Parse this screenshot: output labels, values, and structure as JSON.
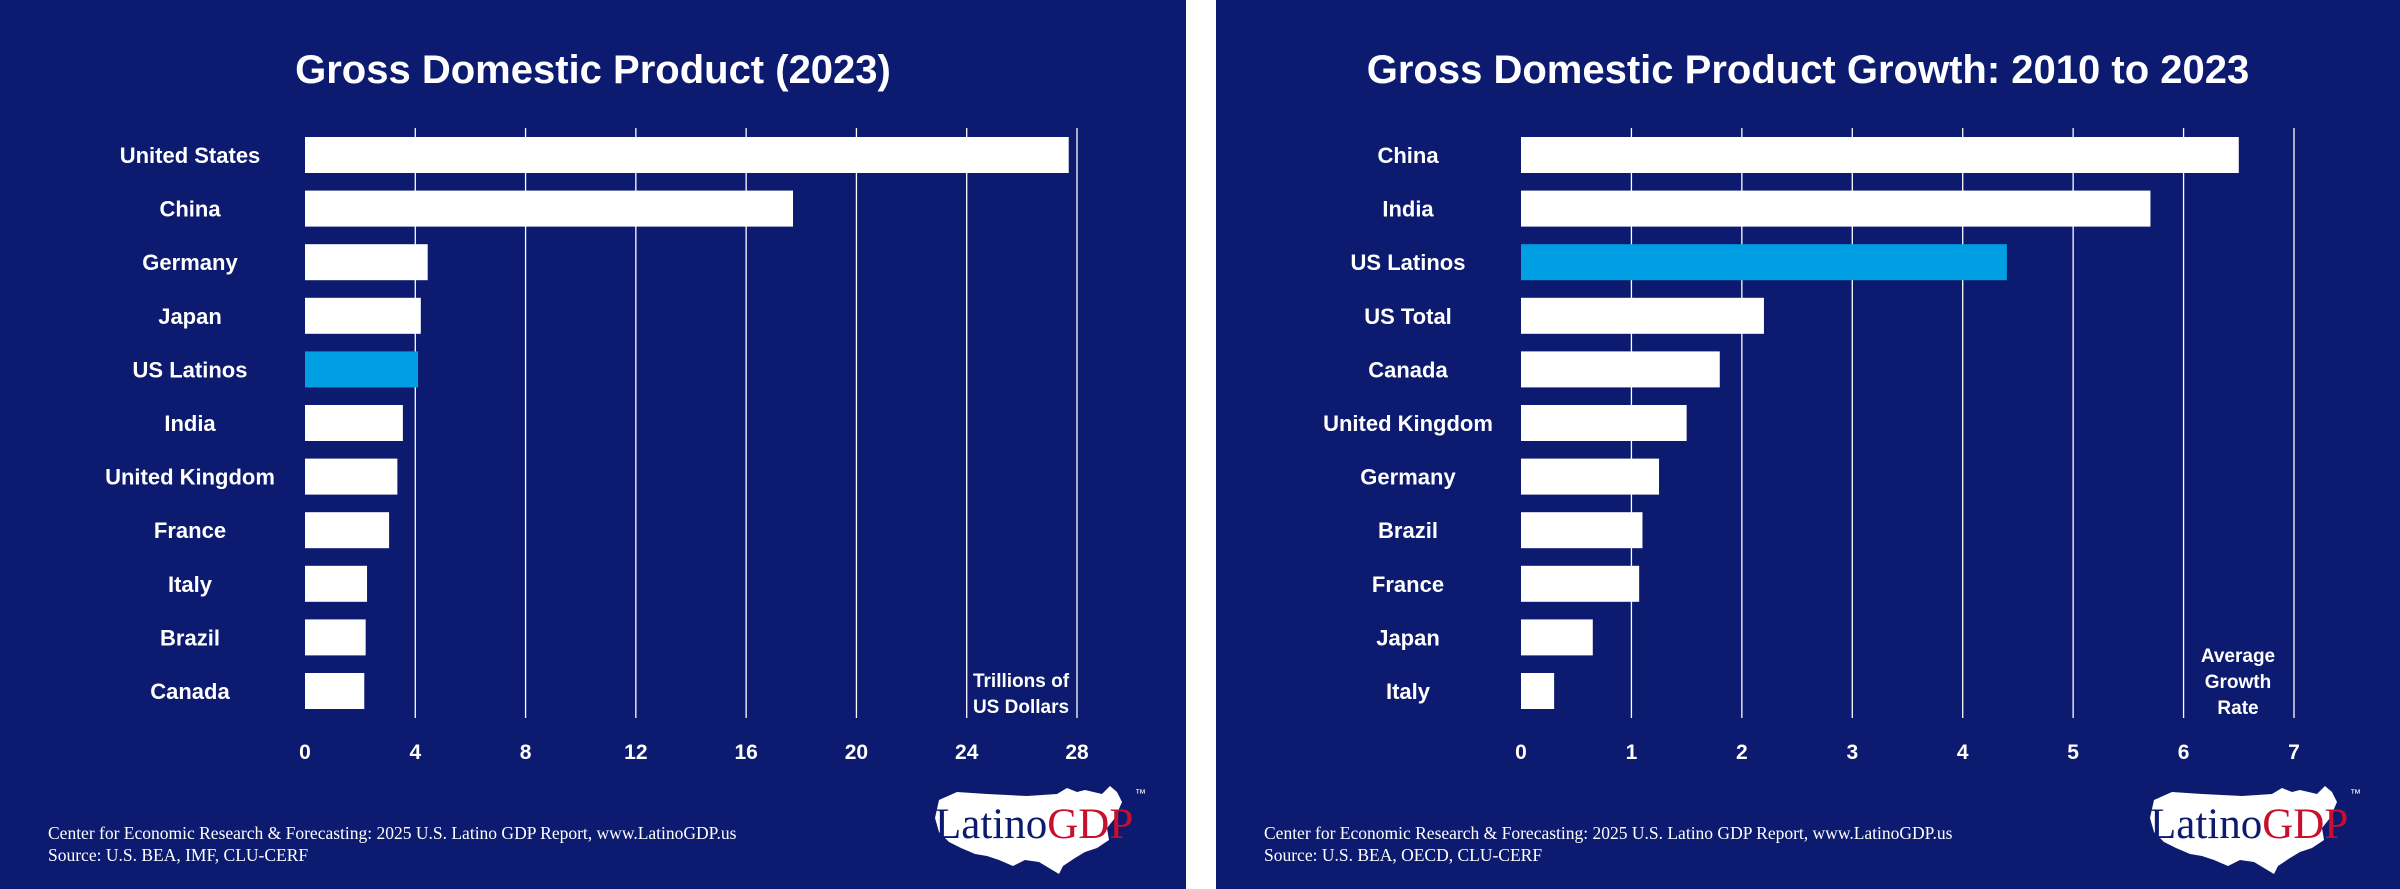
{
  "charts": [
    {
      "panel": "left",
      "title": "Gross Domestic Product (2023)",
      "footer_line1": "Center for Economic Research & Forecasting: 2025 U.S. Latino GDP Report, www.LatinoGDP.us",
      "footer_line2": "Source: U.S. BEA, IMF, CLU-CERF",
      "annotation_lines": [
        "Trillions of",
        "US Dollars"
      ],
      "tick_labels": [
        "0",
        "4",
        "8",
        "12",
        "16",
        "20",
        "24",
        "28"
      ],
      "logo": {
        "latino": "Latino",
        "gdp": "GDP",
        "tm": "™"
      }
    },
    {
      "panel": "right",
      "title": "Gross Domestic Product Growth: 2010 to 2023",
      "footer_line1": "Center for Economic Research & Forecasting: 2025 U.S. Latino GDP Report, www.LatinoGDP.us",
      "footer_line2": "Source: U.S. BEA, OECD, CLU-CERF",
      "annotation_lines": [
        "Average",
        "Growth",
        "Rate"
      ],
      "tick_labels": [
        "0",
        "1",
        "2",
        "3",
        "4",
        "5",
        "6",
        "7"
      ],
      "logo": {
        "latino": "Latino",
        "gdp": "GDP",
        "tm": "™"
      }
    }
  ],
  "colors": {
    "background": "#0c1b6f",
    "bar_default": "#ffffff",
    "bar_highlight": "#009fe3",
    "gridline": "#ffffff",
    "logo_red": "#c8102e"
  },
  "chart_data": [
    {
      "type": "bar",
      "orientation": "horizontal",
      "title": "Gross Domestic Product (2023)",
      "xlabel": "Trillions of US Dollars",
      "ylabel": "",
      "xlim": [
        0,
        28
      ],
      "xticks": [
        0,
        4,
        8,
        12,
        16,
        20,
        24,
        28
      ],
      "grid": true,
      "categories": [
        "United States",
        "China",
        "Germany",
        "Japan",
        "US Latinos",
        "India",
        "United Kingdom",
        "France",
        "Italy",
        "Brazil",
        "Canada"
      ],
      "values": [
        27.7,
        17.7,
        4.45,
        4.2,
        4.1,
        3.55,
        3.35,
        3.05,
        2.25,
        2.2,
        2.15
      ],
      "highlight": "US Latinos"
    },
    {
      "type": "bar",
      "orientation": "horizontal",
      "title": "Gross Domestic Product Growth: 2010 to 2023",
      "xlabel": "Average Growth Rate",
      "ylabel": "",
      "xlim": [
        0,
        7
      ],
      "xticks": [
        0,
        1,
        2,
        3,
        4,
        5,
        6,
        7
      ],
      "grid": true,
      "categories": [
        "China",
        "India",
        "US Latinos",
        "US Total",
        "Canada",
        "United Kingdom",
        "Germany",
        "Brazil",
        "France",
        "Japan",
        "Italy"
      ],
      "values": [
        6.5,
        5.7,
        4.4,
        2.2,
        1.8,
        1.5,
        1.25,
        1.1,
        1.07,
        0.65,
        0.3
      ],
      "highlight": "US Latinos"
    }
  ]
}
